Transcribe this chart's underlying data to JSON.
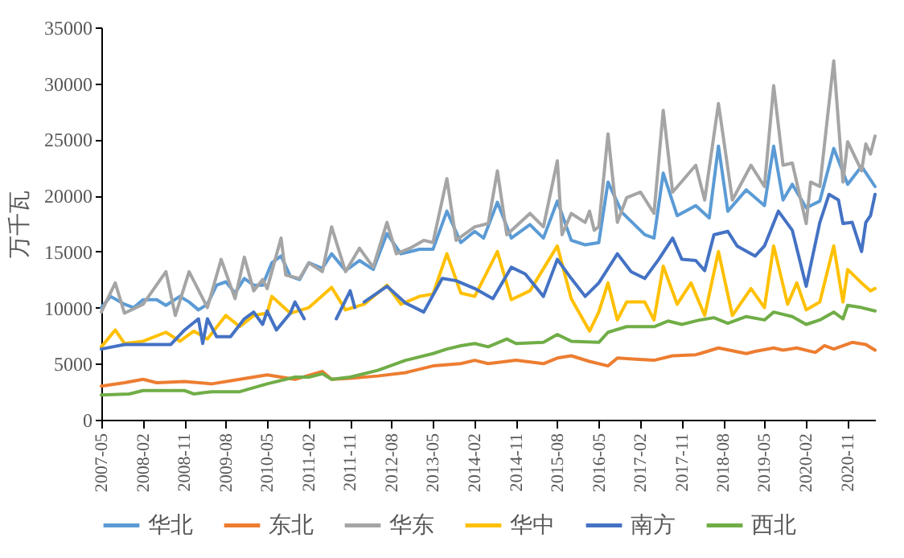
{
  "chart_data": {
    "type": "line",
    "ylabel": "万千瓦",
    "xlim": [
      "2007-05",
      "2021-05"
    ],
    "xticks": [
      "2007-05",
      "2008-02",
      "2008-11",
      "2009-08",
      "2010-05",
      "2011-02",
      "2011-11",
      "2012-08",
      "2013-05",
      "2014-02",
      "2014-11",
      "2015-08",
      "2016-05",
      "2017-02",
      "2017-11",
      "2018-08",
      "2019-05",
      "2020-02",
      "2020-11"
    ],
    "ylim": [
      0,
      35000
    ],
    "yticks": [
      0,
      5000,
      10000,
      15000,
      20000,
      25000,
      30000,
      35000
    ],
    "grid": false,
    "legend": "bottom",
    "marker": "none",
    "line_style": "solid",
    "series": [
      {
        "name": "华北",
        "color": "#5b9bd5",
        "x": [
          "2007-05",
          "2007-07",
          "2007-10",
          "2007-12",
          "2008-02",
          "2008-05",
          "2008-07",
          "2008-10",
          "2008-12",
          "2009-02",
          "2009-04",
          "2009-06",
          "2009-08",
          "2009-10",
          "2009-12",
          "2010-02",
          "2010-04",
          "2010-06",
          "2010-08",
          "2010-10",
          "2010-12",
          "2011-02",
          "2011-05",
          "2011-07",
          "2011-10",
          "2012-01",
          "2012-04",
          "2012-07",
          "2012-10",
          "2013-02",
          "2013-05",
          "2013-08",
          "2013-11",
          "2014-02",
          "2014-04",
          "2014-07",
          "2014-10",
          "2015-02",
          "2015-05",
          "2015-08",
          "2015-11",
          "2016-02",
          "2016-05",
          "2016-07",
          "2016-10",
          "2017-03",
          "2017-05",
          "2017-07",
          "2017-10",
          "2018-02",
          "2018-05",
          "2018-07",
          "2018-09",
          "2019-01",
          "2019-05",
          "2019-07",
          "2019-09",
          "2019-11",
          "2020-02",
          "2020-05",
          "2020-08",
          "2020-11",
          "2021-02",
          "2021-05"
        ],
        "values": [
          10000,
          11000,
          10300,
          10000,
          10700,
          10700,
          10200,
          11000,
          10500,
          9800,
          10300,
          12000,
          12300,
          11300,
          12600,
          12000,
          12000,
          14000,
          14600,
          12800,
          12500,
          14000,
          13500,
          14800,
          13300,
          14200,
          13400,
          16600,
          14800,
          15200,
          15200,
          18600,
          15800,
          16800,
          16200,
          19400,
          16200,
          17400,
          16200,
          19500,
          16000,
          15600,
          15800,
          21200,
          18500,
          16500,
          16200,
          22000,
          18200,
          19100,
          18000,
          24400,
          18600,
          20500,
          19100,
          24400,
          19600,
          21000,
          18900,
          19500,
          24200,
          21000,
          22600,
          20800
        ]
      },
      {
        "name": "东北",
        "color": "#ed7d31",
        "x": [
          "2007-05",
          "2007-10",
          "2008-02",
          "2008-05",
          "2008-11",
          "2009-05",
          "2009-11",
          "2010-05",
          "2010-11",
          "2011-05",
          "2011-07",
          "2011-11",
          "2012-05",
          "2012-11",
          "2013-05",
          "2013-11",
          "2014-02",
          "2014-05",
          "2014-11",
          "2015-05",
          "2015-08",
          "2015-11",
          "2016-03",
          "2016-07",
          "2016-09",
          "2017-01",
          "2017-05",
          "2017-09",
          "2018-02",
          "2018-03",
          "2018-07",
          "2019-01",
          "2019-03",
          "2019-07",
          "2019-09",
          "2019-12",
          "2020-04",
          "2020-06",
          "2020-08",
          "2020-12",
          "2021-03",
          "2021-05"
        ],
        "values": [
          3000,
          3300,
          3600,
          3300,
          3400,
          3200,
          3600,
          4000,
          3600,
          4300,
          3600,
          3700,
          3900,
          4200,
          4800,
          5000,
          5300,
          5000,
          5300,
          5000,
          5500,
          5700,
          5200,
          4800,
          5500,
          5400,
          5300,
          5700,
          5800,
          5900,
          6400,
          5900,
          6100,
          6400,
          6200,
          6400,
          6000,
          6600,
          6300,
          6900,
          6700,
          6200
        ]
      },
      {
        "name": "华东",
        "color": "#a5a5a5",
        "x": [
          "2007-05",
          "2007-08",
          "2007-10",
          "2008-02",
          "2008-07",
          "2008-09",
          "2008-12",
          "2009-04",
          "2009-07",
          "2009-10",
          "2009-12",
          "2010-02",
          "2010-04",
          "2010-05",
          "2010-08",
          "2010-09",
          "2010-12",
          "2011-02",
          "2011-05",
          "2011-07",
          "2011-10",
          "2012-01",
          "2012-04",
          "2012-07",
          "2012-09",
          "2012-12",
          "2013-03",
          "2013-05",
          "2013-08",
          "2013-10",
          "2014-02",
          "2014-05",
          "2014-07",
          "2014-09",
          "2015-02",
          "2015-05",
          "2015-08",
          "2015-09",
          "2015-11",
          "2016-02",
          "2016-03",
          "2016-04",
          "2016-05",
          "2016-07",
          "2016-09",
          "2016-11",
          "2017-02",
          "2017-05",
          "2017-07",
          "2017-09",
          "2018-02",
          "2018-04",
          "2018-07",
          "2018-10",
          "2019-02",
          "2019-05",
          "2019-07",
          "2019-09",
          "2019-11",
          "2020-02",
          "2020-03",
          "2020-05",
          "2020-08",
          "2020-10",
          "2020-11",
          "2021-02",
          "2021-03",
          "2021-04",
          "2021-05"
        ],
        "values": [
          9600,
          12200,
          9500,
          10300,
          13200,
          9300,
          13200,
          10000,
          14300,
          10800,
          14500,
          11500,
          12500,
          11700,
          16200,
          12900,
          12600,
          14000,
          13200,
          17200,
          13200,
          15300,
          13600,
          17600,
          14800,
          15300,
          16000,
          15800,
          21500,
          16000,
          17200,
          17500,
          22200,
          16500,
          18400,
          17200,
          23100,
          16500,
          18400,
          17600,
          18600,
          16900,
          17200,
          25500,
          17600,
          19800,
          20300,
          18400,
          27600,
          20300,
          22700,
          19600,
          28200,
          19600,
          22700,
          20800,
          29800,
          22700,
          22900,
          17500,
          21200,
          20800,
          32000,
          21200,
          24800,
          22200,
          24600,
          23700,
          25300
        ]
      },
      {
        "name": "华中",
        "color": "#ffc000",
        "x": [
          "2007-05",
          "2007-08",
          "2007-10",
          "2008-02",
          "2008-07",
          "2008-10",
          "2009-01",
          "2009-04",
          "2009-08",
          "2009-11",
          "2010-02",
          "2010-05",
          "2010-06",
          "2010-10",
          "2011-02",
          "2011-07",
          "2011-10",
          "2012-02",
          "2012-07",
          "2012-10",
          "2013-02",
          "2013-05",
          "2013-08",
          "2013-11",
          "2014-02",
          "2014-07",
          "2014-10",
          "2015-02",
          "2015-08",
          "2015-11",
          "2016-03",
          "2016-05",
          "2016-07",
          "2016-09",
          "2016-11",
          "2017-03",
          "2017-05",
          "2017-07",
          "2017-10",
          "2018-01",
          "2018-04",
          "2018-07",
          "2018-10",
          "2019-02",
          "2019-05",
          "2019-07",
          "2019-10",
          "2019-12",
          "2020-02",
          "2020-05",
          "2020-08",
          "2020-10",
          "2020-11",
          "2021-02",
          "2021-04",
          "2021-05"
        ],
        "values": [
          6500,
          8000,
          6800,
          7000,
          7800,
          7000,
          7900,
          7200,
          9300,
          8300,
          9300,
          9500,
          11000,
          9500,
          10000,
          11800,
          9800,
          10300,
          12000,
          10300,
          11000,
          11200,
          14800,
          11300,
          11000,
          15000,
          10700,
          11500,
          15500,
          10800,
          7900,
          9600,
          12200,
          8900,
          10500,
          10500,
          8900,
          13700,
          10300,
          12200,
          9300,
          15000,
          9300,
          11700,
          10000,
          15500,
          10300,
          12200,
          9800,
          10500,
          15500,
          10500,
          13400,
          12200,
          11500,
          11700
        ]
      },
      {
        "name": "南方",
        "color": "#4472c4",
        "x": [
          "2007-05",
          "2007-10",
          "2008-08",
          "2008-11",
          "2009-02",
          "2009-03",
          "2009-04",
          "2009-06",
          "2009-09",
          "2009-12",
          "2010-02",
          "2010-04",
          "2010-05",
          "2010-07",
          "2010-10",
          "2010-11",
          "2011-01",
          "2011-02",
          "2011-08",
          "2011-11",
          "2011-12",
          "2012-01",
          "2012-02",
          "2012-07",
          "2012-11",
          "2013-03",
          "2013-07",
          "2013-10",
          "2014-02",
          "2014-06",
          "2014-10",
          "2015-01",
          "2015-05",
          "2015-08",
          "2015-11",
          "2016-02",
          "2016-05",
          "2016-09",
          "2016-12",
          "2017-03",
          "2017-06",
          "2017-09",
          "2017-11",
          "2018-02",
          "2018-04",
          "2018-06",
          "2018-09",
          "2018-11",
          "2019-03",
          "2019-05",
          "2019-08",
          "2019-11",
          "2020-02",
          "2020-05",
          "2020-07",
          "2020-09",
          "2020-10",
          "2020-12",
          "2021-02",
          "2021-03",
          "2021-04",
          "2021-05"
        ],
        "values": [
          6300,
          6700,
          6700,
          8000,
          9000,
          6800,
          9000,
          7400,
          7400,
          9000,
          9600,
          8500,
          9700,
          8000,
          9500,
          10500,
          9000,
          null,
          9000,
          11500,
          10000,
          null,
          10500,
          11900,
          10400,
          9600,
          12600,
          12400,
          11700,
          10800,
          13600,
          13000,
          11000,
          14300,
          12600,
          11000,
          12200,
          14800,
          13200,
          12600,
          14300,
          16200,
          14300,
          14200,
          13300,
          16500,
          16800,
          15500,
          14600,
          15500,
          18600,
          16900,
          11900,
          17600,
          20100,
          19600,
          17500,
          17600,
          15000,
          17600,
          18200,
          20100
        ]
      },
      {
        "name": "西北",
        "color": "#70ad47",
        "x": [
          "2007-05",
          "2007-11",
          "2008-02",
          "2008-11",
          "2009-01",
          "2009-05",
          "2009-11",
          "2010-05",
          "2010-11",
          "2011-02",
          "2011-05",
          "2011-07",
          "2011-11",
          "2012-05",
          "2012-11",
          "2013-05",
          "2013-08",
          "2013-11",
          "2014-02",
          "2014-05",
          "2014-09",
          "2014-11",
          "2015-05",
          "2015-08",
          "2015-11",
          "2016-05",
          "2016-07",
          "2016-11",
          "2017-05",
          "2017-08",
          "2017-11",
          "2018-03",
          "2018-06",
          "2018-09",
          "2019-01",
          "2019-05",
          "2019-07",
          "2019-11",
          "2020-02",
          "2020-05",
          "2020-08",
          "2020-10",
          "2020-11",
          "2021-02",
          "2021-05"
        ],
        "values": [
          2200,
          2300,
          2600,
          2600,
          2300,
          2500,
          2500,
          3200,
          3800,
          3800,
          4100,
          3600,
          3800,
          4400,
          5300,
          5900,
          6300,
          6600,
          6800,
          6500,
          7200,
          6800,
          6900,
          7600,
          7000,
          6900,
          7800,
          8300,
          8300,
          8800,
          8500,
          8900,
          9100,
          8600,
          9200,
          8900,
          9600,
          9200,
          8500,
          8900,
          9600,
          9000,
          10200,
          10000,
          9700
        ]
      }
    ]
  }
}
